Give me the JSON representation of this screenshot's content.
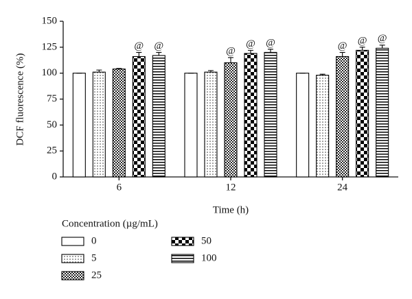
{
  "chart_data": {
    "type": "bar",
    "xlabel": "Time (h)",
    "ylabel": "DCF fluorescence (%)",
    "categories": [
      "6",
      "12",
      "24"
    ],
    "ylim": [
      0,
      150
    ],
    "yticks": [
      0,
      25,
      50,
      75,
      100,
      125,
      150
    ],
    "legend_title": "Concentration (µg/mL)",
    "series": [
      {
        "name": "0",
        "pattern": "plain",
        "values": [
          100,
          100,
          100
        ],
        "errors": [
          0,
          0,
          0
        ],
        "annotations": [
          null,
          null,
          null
        ]
      },
      {
        "name": "5",
        "pattern": "dots",
        "values": [
          101,
          101,
          98
        ],
        "errors": [
          2,
          1.5,
          1
        ],
        "annotations": [
          null,
          null,
          null
        ]
      },
      {
        "name": "25",
        "pattern": "fine-check",
        "values": [
          104,
          110,
          116
        ],
        "errors": [
          0.5,
          5,
          4
        ],
        "annotations": [
          null,
          "@",
          "@"
        ]
      },
      {
        "name": "50",
        "pattern": "checker",
        "values": [
          116,
          119,
          122
        ],
        "errors": [
          4,
          3,
          3
        ],
        "annotations": [
          "@",
          "@",
          "@"
        ]
      },
      {
        "name": "100",
        "pattern": "stripes",
        "values": [
          117,
          120,
          124
        ],
        "errors": [
          3,
          3,
          3
        ],
        "annotations": [
          "@",
          "@",
          "@"
        ]
      }
    ]
  }
}
